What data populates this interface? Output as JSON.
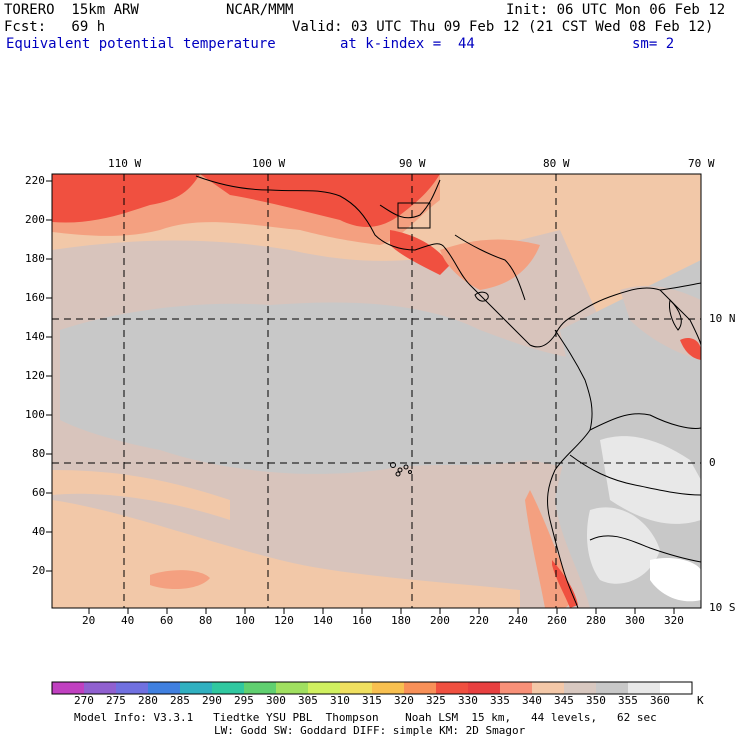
{
  "header": {
    "left_line1": "TORERO  15km ARW",
    "left_line2": "Fcst:   69 h",
    "center": "NCAR/MMM",
    "init": "Init: 06 UTC Mon 06 Feb 12",
    "valid": "Valid: 03 UTC Thu 09 Feb 12 (21 CST Wed 08 Feb 12)",
    "field": "Equivalent potential temperature",
    "level": "at k-index =  44",
    "smooth": "sm= 2"
  },
  "map": {
    "lon_labels": [
      "110 W",
      "100 W",
      "90 W",
      "80 W",
      "70 W"
    ],
    "lat_labels": [
      "10 N",
      "0",
      "10 S"
    ],
    "y_ticks": [
      "220",
      "200",
      "180",
      "160",
      "140",
      "120",
      "100",
      "80",
      "60",
      "40",
      "20"
    ],
    "x_ticks": [
      "20",
      "40",
      "60",
      "80",
      "100",
      "120",
      "140",
      "160",
      "180",
      "200",
      "220",
      "240",
      "260",
      "280",
      "300",
      "320"
    ]
  },
  "colorbar": {
    "values": [
      "270",
      "275",
      "280",
      "285",
      "290",
      "295",
      "300",
      "305",
      "310",
      "315",
      "320",
      "325",
      "330",
      "335",
      "340",
      "345",
      "350",
      "355",
      "360"
    ],
    "unit": "K",
    "colors": [
      "#c040c0",
      "#9060d0",
      "#7070e0",
      "#4080e0",
      "#30b0c0",
      "#30c8a0",
      "#60d070",
      "#a0e060",
      "#d0f060",
      "#f0e060",
      "#f8c050",
      "#f89058",
      "#f05040",
      "#e84040",
      "#f89078",
      "#f4c8a8",
      "#d8c8c0",
      "#c8c8c8",
      "#e8e8e8",
      "#ffffff"
    ]
  },
  "footer": {
    "line1": "Model Info: V3.3.1   Tiedtke YSU PBL  Thompson    Noah LSM  15 km,   44 levels,   62 sec",
    "line2": "LW: Godd SW: Goddard DIFF: simple KM: 2D Smagor"
  },
  "colors": {
    "title_blue": "#0000c0",
    "warm_red": "#f05040",
    "salmon": "#f4a080",
    "peach": "#f2c8a8",
    "taupe": "#d8c4bc",
    "gray": "#c8c8c8",
    "light_gray": "#e8e8e8"
  }
}
